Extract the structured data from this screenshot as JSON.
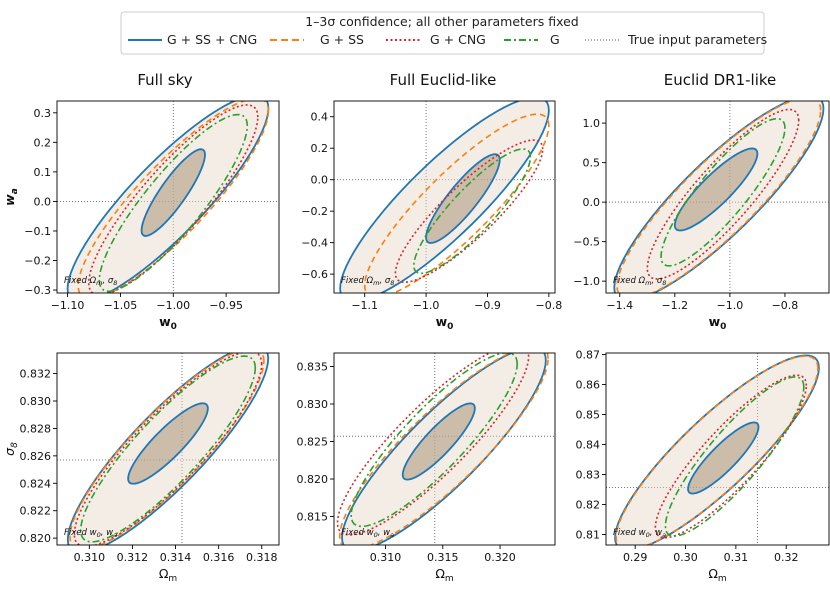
{
  "legend": {
    "title": "1–3σ confidence; all other parameters fixed",
    "entries": [
      {
        "label": "G + SS + CNG",
        "color": "#1f77b4",
        "dash": "solid"
      },
      {
        "label": "G + SS",
        "color": "#ff7f0e",
        "dash": "dashed"
      },
      {
        "label": "G + CNG",
        "color": "#d62728",
        "dash": "dotted"
      },
      {
        "label": "G",
        "color": "#2ca02c",
        "dash": "dashdot"
      },
      {
        "label": "True input parameters",
        "color": "#555555",
        "dash": "fine-dotted"
      }
    ]
  },
  "chart_data": [
    {
      "type": "contour",
      "column_title": "Full sky",
      "note": "Fixed Ωm, σ8",
      "xlabel": "w0",
      "ylabel": "wa",
      "xlim": [
        -1.11,
        -0.9
      ],
      "ylim": [
        -0.31,
        0.34
      ],
      "xticks": [
        -1.1,
        -1.05,
        -1.0,
        -0.95
      ],
      "xtick_labels": [
        "−1.10",
        "−1.05",
        "−1.00",
        "−0.95"
      ],
      "yticks": [
        -0.3,
        -0.2,
        -0.1,
        0.0,
        0.1,
        0.2,
        0.3
      ],
      "ytick_labels": [
        "−0.3",
        "−0.2",
        "−0.1",
        "0.0",
        "0.1",
        "0.2",
        "0.3"
      ],
      "truth": {
        "x": -1.0,
        "y": 0.0
      },
      "ellipses": [
        {
          "series": "G + SS + CNG",
          "sigma": 1,
          "x_extent": [
            -1.03,
            -0.97
          ],
          "y_extent": [
            -0.1,
            0.16
          ]
        },
        {
          "series": "G + SS + CNG",
          "sigma": 3,
          "x_extent": [
            -1.1,
            -0.91
          ],
          "y_extent": [
            -0.3,
            0.32
          ]
        },
        {
          "series": "G + SS",
          "sigma": 3,
          "x_extent": [
            -1.09,
            -0.91
          ],
          "y_extent": [
            -0.29,
            0.31
          ]
        },
        {
          "series": "G + CNG",
          "sigma": 3,
          "x_extent": [
            -1.08,
            -0.92
          ],
          "y_extent": [
            -0.28,
            0.29
          ]
        },
        {
          "series": "G",
          "sigma": 3,
          "x_extent": [
            -1.07,
            -0.93
          ],
          "y_extent": [
            -0.27,
            0.26
          ]
        }
      ]
    },
    {
      "type": "contour",
      "column_title": "Full Euclid-like",
      "note": "Fixed Ωm, σ8",
      "xlabel": "w0",
      "ylabel": "",
      "xlim": [
        -1.15,
        -0.79
      ],
      "ylim": [
        -0.72,
        0.5
      ],
      "xticks": [
        -1.1,
        -1.0,
        -0.9,
        -0.8
      ],
      "xtick_labels": [
        "−1.1",
        "−1.0",
        "−0.9",
        "−0.8"
      ],
      "yticks": [
        -0.6,
        -0.4,
        -0.2,
        0.0,
        0.2,
        0.4
      ],
      "ytick_labels": [
        "−0.6",
        "−0.4",
        "−0.2",
        "0.0",
        "0.2",
        "0.4"
      ],
      "truth": {
        "x": -1.0,
        "y": 0.0
      },
      "ellipses": [
        {
          "series": "G + SS + CNG",
          "sigma": 1,
          "x_extent": [
            -1.0,
            -0.88
          ],
          "y_extent": [
            -0.37,
            0.13
          ]
        },
        {
          "series": "G + SS + CNG",
          "sigma": 3,
          "x_extent": [
            -1.14,
            -0.8
          ],
          "y_extent": [
            -0.7,
            0.45
          ]
        },
        {
          "series": "G + SS",
          "sigma": 3,
          "x_extent": [
            -1.1,
            -0.8
          ],
          "y_extent": [
            -0.68,
            0.35
          ]
        },
        {
          "series": "G + CNG",
          "sigma": 3,
          "x_extent": [
            -1.05,
            -0.81
          ],
          "y_extent": [
            -0.6,
            0.2
          ]
        },
        {
          "series": "G",
          "sigma": 3,
          "x_extent": [
            -1.02,
            -0.83
          ],
          "y_extent": [
            -0.55,
            0.15
          ]
        }
      ]
    },
    {
      "type": "contour",
      "column_title": "Euclid DR1-like",
      "note": "Fixed Ωm, σ8",
      "xlabel": "w0",
      "ylabel": "",
      "xlim": [
        -1.45,
        -0.64
      ],
      "ylim": [
        -1.15,
        1.28
      ],
      "xticks": [
        -1.4,
        -1.2,
        -1.0,
        -0.8
      ],
      "xtick_labels": [
        "−1.4",
        "−1.2",
        "−1.0",
        "−0.8"
      ],
      "yticks": [
        -1.0,
        -0.5,
        0.0,
        0.5,
        1.0
      ],
      "ytick_labels": [
        "−1.0",
        "−0.5",
        "0.0",
        "0.5",
        "1.0"
      ],
      "truth": {
        "x": -1.0,
        "y": 0.0
      },
      "ellipses": [
        {
          "series": "G + SS + CNG",
          "sigma": 1,
          "x_extent": [
            -1.2,
            -0.9
          ],
          "y_extent": [
            -0.3,
            0.62
          ]
        },
        {
          "series": "G + SS + CNG",
          "sigma": 3,
          "x_extent": [
            -1.42,
            -0.66
          ],
          "y_extent": [
            -1.1,
            1.2
          ]
        },
        {
          "series": "G + SS",
          "sigma": 3,
          "x_extent": [
            -1.41,
            -0.67
          ],
          "y_extent": [
            -1.08,
            1.18
          ]
        },
        {
          "series": "G + CNG",
          "sigma": 3,
          "x_extent": [
            -1.3,
            -0.75
          ],
          "y_extent": [
            -0.85,
            1.05
          ]
        },
        {
          "series": "G",
          "sigma": 3,
          "x_extent": [
            -1.25,
            -0.8
          ],
          "y_extent": [
            -0.7,
            0.95
          ]
        }
      ]
    },
    {
      "type": "contour",
      "column_title": "",
      "note": "Fixed w0, wa",
      "xlabel": "Ωm",
      "ylabel": "σ8",
      "xlim": [
        0.3085,
        0.3188
      ],
      "ylim": [
        0.8195,
        0.8335
      ],
      "xticks": [
        0.31,
        0.312,
        0.314,
        0.316,
        0.318
      ],
      "xtick_labels": [
        "0.310",
        "0.312",
        "0.314",
        "0.316",
        "0.318"
      ],
      "yticks": [
        0.82,
        0.822,
        0.824,
        0.826,
        0.828,
        0.83,
        0.832
      ],
      "ytick_labels": [
        "0.820",
        "0.822",
        "0.824",
        "0.826",
        "0.828",
        "0.830",
        "0.832"
      ],
      "truth": {
        "x": 0.3143,
        "y": 0.8257
      },
      "ellipses": [
        {
          "series": "G + SS + CNG",
          "sigma": 1,
          "x_extent": [
            0.3118,
            0.3155
          ],
          "y_extent": [
            0.8243,
            0.8295
          ]
        },
        {
          "series": "G + SS + CNG",
          "sigma": 3,
          "x_extent": [
            0.309,
            0.3183
          ],
          "y_extent": [
            0.8198,
            0.8332
          ]
        },
        {
          "series": "G + SS",
          "sigma": 3,
          "x_extent": [
            0.3091,
            0.3181
          ],
          "y_extent": [
            0.82,
            0.833
          ]
        },
        {
          "series": "G + CNG",
          "sigma": 3,
          "x_extent": [
            0.3093,
            0.318
          ],
          "y_extent": [
            0.8202,
            0.8328
          ]
        },
        {
          "series": "G",
          "sigma": 3,
          "x_extent": [
            0.3096,
            0.3177
          ],
          "y_extent": [
            0.8205,
            0.8325
          ]
        }
      ]
    },
    {
      "type": "contour",
      "column_title": "",
      "note": "Fixed w0, wa",
      "xlabel": "Ωm",
      "ylabel": "",
      "xlim": [
        0.3055,
        0.3248
      ],
      "ylim": [
        0.8112,
        0.8368
      ],
      "xticks": [
        0.31,
        0.315,
        0.32
      ],
      "xtick_labels": [
        "0.310",
        "0.315",
        "0.320"
      ],
      "yticks": [
        0.815,
        0.82,
        0.825,
        0.83,
        0.835
      ],
      "ytick_labels": [
        "0.815",
        "0.820",
        "0.825",
        "0.830",
        "0.835"
      ],
      "truth": {
        "x": 0.3143,
        "y": 0.8257
      },
      "ellipses": [
        {
          "series": "G + SS + CNG",
          "sigma": 1,
          "x_extent": [
            0.3115,
            0.3178
          ],
          "y_extent": [
            0.8205,
            0.8295
          ]
        },
        {
          "series": "G + SS + CNG",
          "sigma": 3,
          "x_extent": [
            0.3062,
            0.324
          ],
          "y_extent": [
            0.812,
            0.836
          ]
        },
        {
          "series": "G + SS",
          "sigma": 3,
          "x_extent": [
            0.306,
            0.3242
          ],
          "y_extent": [
            0.8122,
            0.8362
          ]
        },
        {
          "series": "G + CNG",
          "sigma": 3,
          "x_extent": [
            0.3058,
            0.3225
          ],
          "y_extent": [
            0.814,
            0.8365
          ]
        },
        {
          "series": "G",
          "sigma": 3,
          "x_extent": [
            0.307,
            0.3215
          ],
          "y_extent": [
            0.815,
            0.8355
          ]
        }
      ]
    },
    {
      "type": "contour",
      "column_title": "",
      "note": "Fixed w0, wa",
      "xlabel": "Ωm",
      "ylabel": "",
      "xlim": [
        0.2842,
        0.3285
      ],
      "ylim": [
        0.8065,
        0.8705
      ],
      "xticks": [
        0.29,
        0.3,
        0.31,
        0.32
      ],
      "xtick_labels": [
        "0.29",
        "0.30",
        "0.31",
        "0.32"
      ],
      "yticks": [
        0.81,
        0.82,
        0.83,
        0.84,
        0.85,
        0.86,
        0.87
      ],
      "ytick_labels": [
        "0.81",
        "0.82",
        "0.83",
        "0.84",
        "0.85",
        "0.86",
        "0.87"
      ],
      "truth": {
        "x": 0.3143,
        "y": 0.8257
      },
      "ellipses": [
        {
          "series": "G + SS + CNG",
          "sigma": 1,
          "x_extent": [
            0.3005,
            0.3145
          ],
          "y_extent": [
            0.825,
            0.846
          ]
        },
        {
          "series": "G + SS + CNG",
          "sigma": 3,
          "x_extent": [
            0.286,
            0.3265
          ],
          "y_extent": [
            0.8085,
            0.866
          ]
        },
        {
          "series": "G + SS",
          "sigma": 3,
          "x_extent": [
            0.2862,
            0.3263
          ],
          "y_extent": [
            0.8087,
            0.8658
          ]
        },
        {
          "series": "G + CNG",
          "sigma": 3,
          "x_extent": [
            0.294,
            0.324
          ],
          "y_extent": [
            0.812,
            0.86
          ]
        },
        {
          "series": "G",
          "sigma": 3,
          "x_extent": [
            0.296,
            0.3235
          ],
          "y_extent": [
            0.8125,
            0.8595
          ]
        }
      ]
    }
  ]
}
